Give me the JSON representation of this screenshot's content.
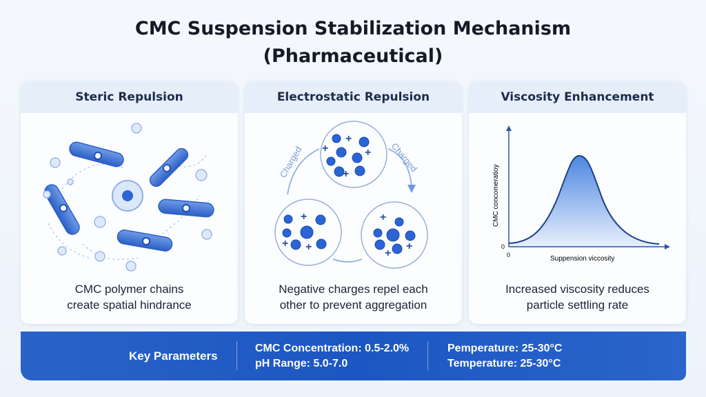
{
  "title": [
    "CMC Suspension Stabilization Mechanism",
    "(Pharmaceutical)"
  ],
  "panels": [
    {
      "heading": "Steric Repulsion",
      "description": [
        "CMC polymer chains",
        "create spatial hindrance"
      ]
    },
    {
      "heading": "Electrostatic Repulsion",
      "description": [
        "Negative charges repel each",
        "other to prevent aggregation"
      ],
      "arrow_labels": [
        "Charged",
        "Charged"
      ]
    },
    {
      "heading": "Viscosity Enhancement",
      "description": [
        "Increased viscosity reduces",
        "particle settling rate"
      ],
      "chart": {
        "type": "area",
        "xlabel": "Suppension viccosity",
        "ylabel": "CMC concomeratioy",
        "x_origin_label": "0",
        "y_origin_label": "0",
        "shape": "bell curve"
      }
    }
  ],
  "key_parameters": {
    "label": "Key Parameters",
    "col1": [
      "CMC Concentration: 0.5-2.0%",
      "pH Range: 5.0-7.0"
    ],
    "col2": [
      "Pemperature: 25-30°C",
      "Temperature: 25-30°C"
    ]
  },
  "colors": {
    "accent": "#1f5bc4",
    "particle": "#2a64d6",
    "header_bg": "#e6eefa"
  }
}
